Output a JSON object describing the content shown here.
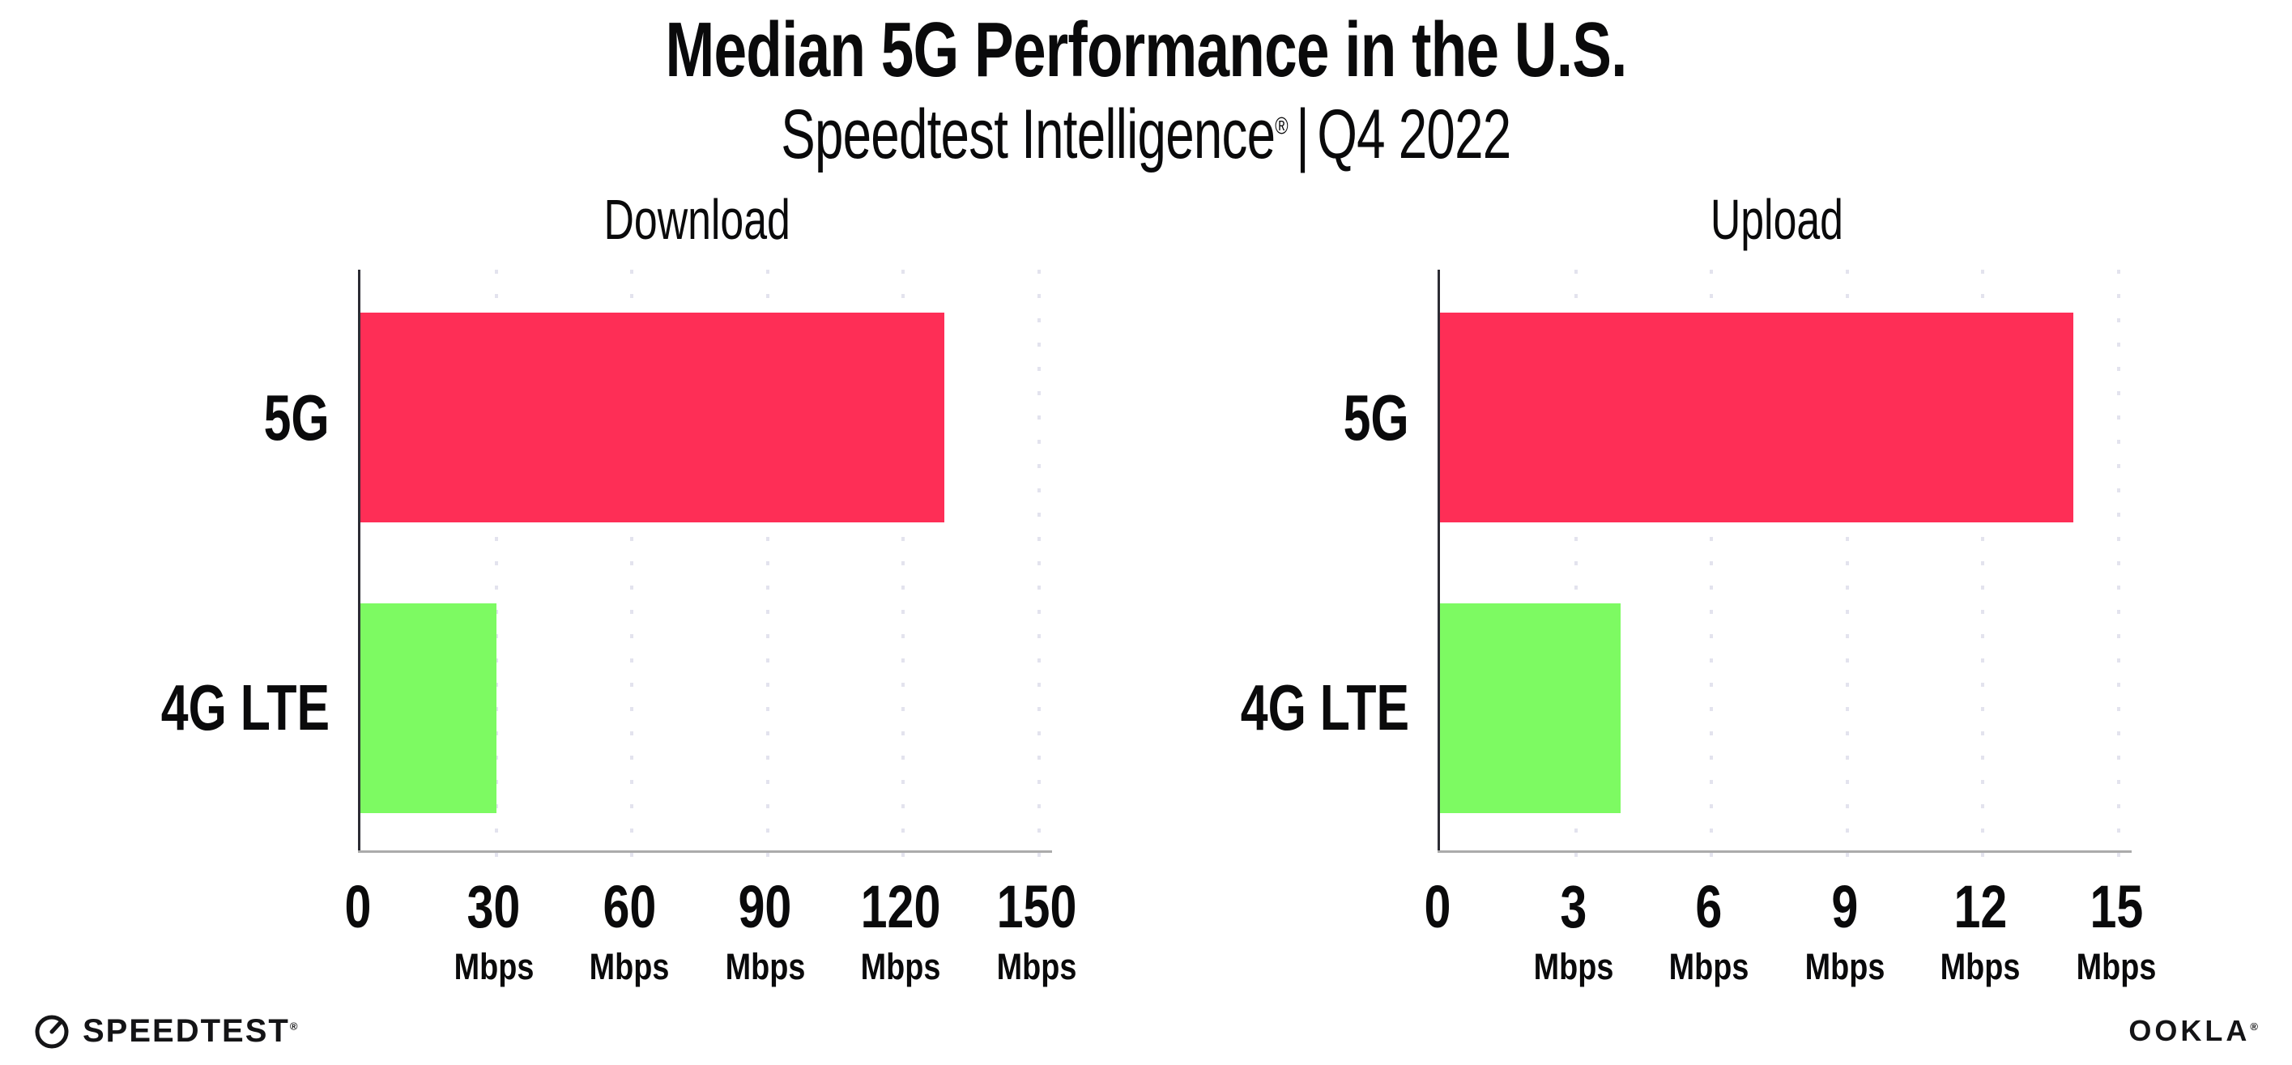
{
  "header": {
    "title": "Median 5G Performance in the U.S.",
    "subtitle": {
      "product": "Speedtest Intelligence",
      "registered_mark": "®",
      "separator": "|",
      "period": "Q4 2022"
    }
  },
  "chart_data": [
    {
      "type": "bar",
      "orientation": "horizontal",
      "title": "Download",
      "categories": [
        "5G",
        "4G LTE"
      ],
      "values": [
        129,
        30
      ],
      "unit": "Mbps",
      "xlim": [
        0,
        150
      ],
      "xticks": [
        0,
        30,
        60,
        90,
        120,
        150
      ],
      "bar_colors": [
        "#FE2E56",
        "#7DFA62"
      ],
      "grid": "dotted vertical gridlines at each tick",
      "legend": "none"
    },
    {
      "type": "bar",
      "orientation": "horizontal",
      "title": "Upload",
      "categories": [
        "5G",
        "4G LTE"
      ],
      "values": [
        14,
        4
      ],
      "unit": "Mbps",
      "xlim": [
        0,
        15
      ],
      "xticks": [
        0,
        3,
        6,
        9,
        12,
        15
      ],
      "bar_colors": [
        "#FE2E56",
        "#7DFA62"
      ],
      "grid": "dotted vertical gridlines at each tick",
      "legend": "none"
    }
  ],
  "footer": {
    "speedtest_label": "SPEEDTEST",
    "speedtest_mark": "®",
    "ookla_label": "OOKLA",
    "ookla_mark": "®"
  },
  "colors": {
    "bar_5g": "#FE2E56",
    "bar_4g_lte": "#7DFA62",
    "gridline": "#E3E3EE",
    "axis_left": "#2C2C34",
    "axis_bottom": "#ABABAB",
    "text": "#0A0A0B"
  }
}
